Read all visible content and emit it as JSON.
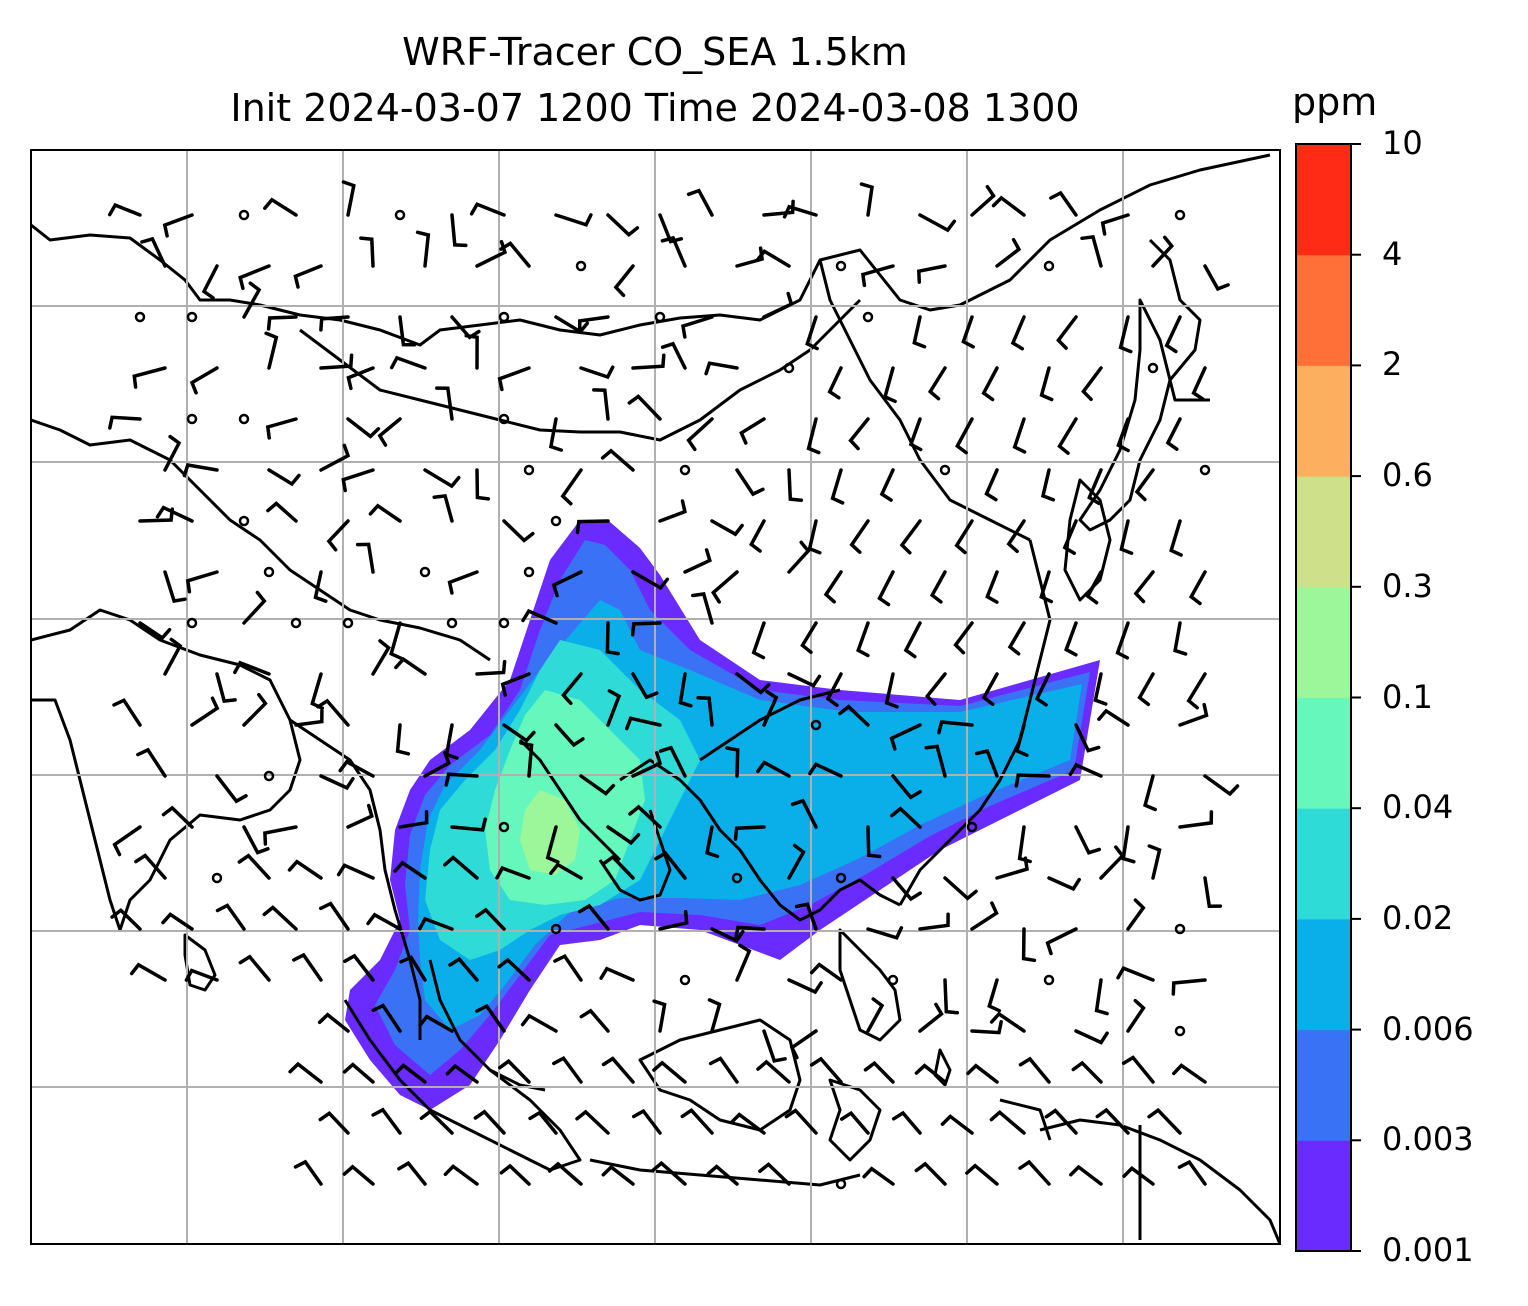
{
  "title": {
    "line1": "WRF-Tracer CO_SEA 1.5km",
    "line2": "Init 2024-03-07 1200 Time 2024-03-08 1300"
  },
  "colorbar": {
    "unit": "ppm",
    "levels": [
      "0.001",
      "0.003",
      "0.006",
      "0.02",
      "0.04",
      "0.1",
      "0.3",
      "0.6",
      "2",
      "4",
      "10"
    ],
    "colors": [
      "#6a2bff",
      "#3a72f5",
      "#0aaee8",
      "#2fdbd6",
      "#66f7bc",
      "#9cf79a",
      "#cfe08a",
      "#fbaf5f",
      "#ff7039",
      "#ff2b17"
    ]
  },
  "map": {
    "gridlines": true,
    "features": [
      "coastlines",
      "country-borders",
      "wind-barbs",
      "co-tracer-plume"
    ],
    "colors": {
      "gridline": "#b0b0b0",
      "coastline": "#000000",
      "frame": "#000000"
    }
  }
}
